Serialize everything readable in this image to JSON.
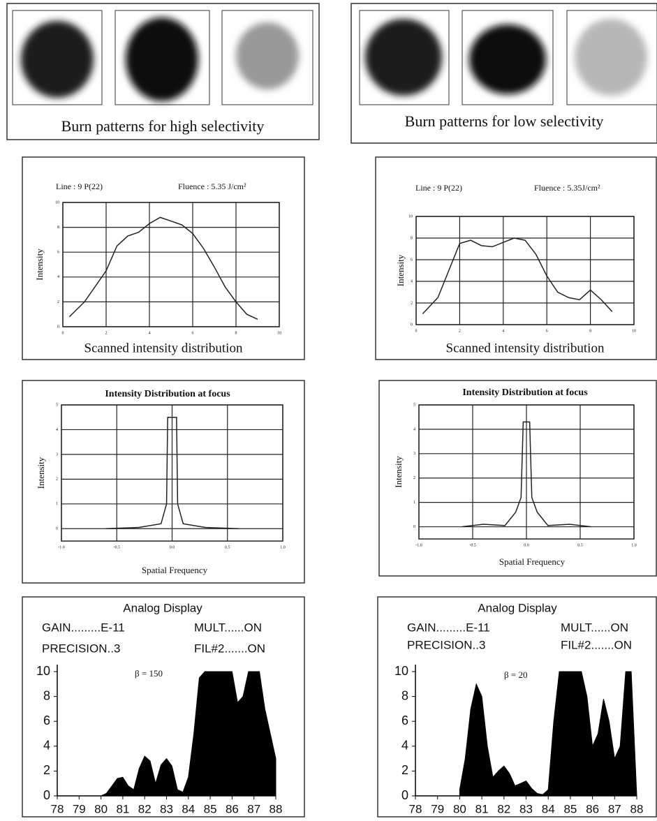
{
  "burn_patterns": [
    {
      "caption": "Burn patterns for high  selectivity"
    },
    {
      "caption": "Burn patterns for low selectivity"
    }
  ],
  "chart_data": [
    {
      "type": "line",
      "annotations": [
        "Line : 9 P(22)",
        "Fluence : 5.35 J/cm²"
      ],
      "ylabel": "Intensity",
      "caption": "Scanned intensity distribution",
      "x": [
        0.3,
        1,
        2,
        2.5,
        3,
        3.5,
        4,
        4.5,
        5,
        5.5,
        6,
        6.5,
        7,
        7.5,
        8,
        8.5,
        9
      ],
      "values": [
        0.8,
        2,
        4.5,
        6.5,
        7.3,
        7.6,
        8.3,
        8.8,
        8.5,
        8.2,
        7.5,
        6.3,
        4.8,
        3.2,
        2,
        1,
        0.6
      ],
      "xlim": [
        0,
        10
      ],
      "ylim": [
        0,
        10
      ],
      "xticks": [
        0,
        2,
        4,
        6,
        8,
        10
      ],
      "yticks": [
        0,
        2,
        4,
        6,
        8,
        10
      ],
      "grid": true,
      "color": "#222"
    },
    {
      "type": "line",
      "annotations": [
        "Line : 9 P(22)",
        "Fluence : 5.35J/cm²"
      ],
      "ylabel": "Intensity",
      "caption": "Scanned intensity distribution",
      "x": [
        0.3,
        1,
        1.5,
        2,
        2.5,
        3,
        3.5,
        4,
        4.5,
        5,
        5.5,
        6,
        6.5,
        7,
        7.5,
        8,
        8.5,
        9
      ],
      "values": [
        1,
        2.5,
        5,
        7.5,
        7.8,
        7.3,
        7.2,
        7.6,
        8,
        7.8,
        6.5,
        4.5,
        3,
        2.5,
        2.3,
        3.2,
        2.3,
        1.2
      ],
      "xlim": [
        0,
        10
      ],
      "ylim": [
        0,
        10
      ],
      "xticks": [
        0,
        2,
        4,
        6,
        8,
        10
      ],
      "yticks": [
        0,
        2,
        4,
        6,
        8,
        10
      ],
      "grid": true,
      "color": "#222"
    },
    {
      "type": "line",
      "title": "Intensity Distribution at focus",
      "ylabel": "Intensity",
      "xlabel": "Spatial Frequency",
      "x": [
        -0.6,
        -0.3,
        -0.1,
        -0.05,
        -0.04,
        0.04,
        0.05,
        0.1,
        0.3,
        0.6
      ],
      "values": [
        0,
        0.05,
        0.2,
        1,
        4.5,
        4.5,
        1,
        0.2,
        0.05,
        0
      ],
      "xlim": [
        -1,
        1
      ],
      "ylim": [
        -0.5,
        5
      ],
      "xticks": [
        {
          "value": -1,
          "label": "-1.0"
        },
        {
          "value": -0.5,
          "label": "-0.5"
        },
        {
          "value": 0,
          "label": "0.0"
        },
        {
          "value": 0.5,
          "label": "0.5"
        },
        {
          "value": 1,
          "label": "1.0"
        }
      ],
      "yticks": [
        0,
        1,
        2,
        3,
        4,
        5
      ],
      "grid": true,
      "color": "#222"
    },
    {
      "type": "line",
      "title": "Intensity Distribution at focus",
      "ylabel": "Intensity",
      "xlabel": "Spatial Frequency",
      "x": [
        -0.6,
        -0.4,
        -0.2,
        -0.1,
        -0.05,
        -0.03,
        0.03,
        0.05,
        0.1,
        0.2,
        0.4,
        0.6
      ],
      "values": [
        0,
        0.1,
        0.05,
        0.6,
        1.2,
        4.3,
        4.3,
        1.2,
        0.6,
        0.05,
        0.1,
        0
      ],
      "xlim": [
        -1,
        1
      ],
      "ylim": [
        -0.5,
        5
      ],
      "xticks": [
        {
          "value": -1,
          "label": "-1.0"
        },
        {
          "value": -0.5,
          "label": "-0.5"
        },
        {
          "value": 0,
          "label": "0.0"
        },
        {
          "value": 0.5,
          "label": "0.5"
        },
        {
          "value": 1,
          "label": "1.0"
        }
      ],
      "yticks": [
        0,
        1,
        2,
        3,
        4,
        5
      ],
      "grid": true,
      "color": "#222"
    },
    {
      "type": "area",
      "title": "Analog Display",
      "annotations": [
        "GAIN.........E-11",
        "MULT......ON",
        "PRECISION..3",
        "FIL#2.......ON",
        "β = 150"
      ],
      "x": [
        80,
        80.25,
        80.5,
        80.75,
        81,
        81.25,
        81.5,
        81.75,
        82,
        82.25,
        82.5,
        82.75,
        83,
        83.25,
        83.5,
        83.75,
        84,
        84.25,
        84.5,
        84.75,
        85,
        85.25,
        85.5,
        85.75,
        86,
        86.25,
        86.5,
        86.75,
        87,
        87.25,
        87.5,
        87.75,
        88
      ],
      "values": [
        0,
        0.2,
        0.8,
        1.4,
        1.5,
        0.8,
        0.5,
        2.2,
        3.2,
        2.8,
        1,
        2.5,
        3,
        2.4,
        0.5,
        0.3,
        1.5,
        5,
        9.5,
        10,
        10,
        10,
        10,
        10,
        10,
        7.5,
        8,
        10,
        10,
        10,
        7,
        5,
        3
      ],
      "xlim": [
        78,
        88
      ],
      "ylim": [
        0,
        10
      ],
      "xticks": [
        78,
        79,
        80,
        81,
        82,
        83,
        84,
        85,
        86,
        87,
        88
      ],
      "yticks": [
        0,
        2,
        4,
        6,
        8,
        10
      ],
      "grid": false,
      "color": "#000"
    },
    {
      "type": "area",
      "title": "Analog Display",
      "annotations": [
        "GAIN.........E-11",
        "MULT......ON",
        "PRECISION..3",
        "FIL#2.......ON",
        "β = 20"
      ],
      "x": [
        80,
        80.25,
        80.5,
        80.75,
        81,
        81.25,
        81.5,
        81.75,
        82,
        82.25,
        82.5,
        82.75,
        83,
        83.25,
        83.5,
        83.75,
        84,
        84.25,
        84.5,
        84.75,
        85,
        85.25,
        85.5,
        85.75,
        86,
        86.25,
        86.5,
        86.75,
        87,
        87.25,
        87.5,
        87.75,
        88
      ],
      "values": [
        0.5,
        3,
        7,
        9,
        8,
        4,
        1.5,
        2,
        2.4,
        1.8,
        0.8,
        1,
        1.2,
        0.6,
        0.2,
        0.1,
        0.5,
        6,
        10,
        10,
        10,
        10,
        10,
        8,
        4,
        5,
        7.8,
        6,
        3,
        4,
        10,
        10,
        0
      ],
      "xlim": [
        78,
        88
      ],
      "ylim": [
        0,
        10
      ],
      "xticks": [
        78,
        79,
        80,
        81,
        82,
        83,
        84,
        85,
        86,
        87,
        88
      ],
      "yticks": [
        0,
        2,
        4,
        6,
        8,
        10
      ],
      "grid": false,
      "color": "#000"
    }
  ]
}
